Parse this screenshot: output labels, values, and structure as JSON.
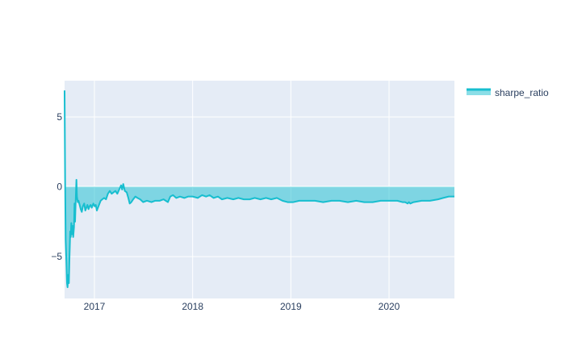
{
  "chart_data": {
    "type": "area",
    "x_type": "date",
    "xlim": [
      "2016-09-12",
      "2020-08-31"
    ],
    "ylim": [
      -8,
      7.6
    ],
    "x_ticks": [
      {
        "label": "2017",
        "date": "2017-01-01"
      },
      {
        "label": "2018",
        "date": "2018-01-01"
      },
      {
        "label": "2019",
        "date": "2019-01-01"
      },
      {
        "label": "2020",
        "date": "2020-01-01"
      }
    ],
    "y_ticks": [
      {
        "label": "5",
        "value": 5
      },
      {
        "label": "0",
        "value": 0
      },
      {
        "label": "−5",
        "value": -5
      }
    ],
    "fill_to": "zero",
    "grid": true,
    "legend_position": "top-right",
    "colors": {
      "line": "#17becf",
      "fill": "rgba(23,190,207,0.5)",
      "plot_bg": "#e5ecf6",
      "grid": "#ffffff",
      "tick_text": "#2a3f5f"
    },
    "series": [
      {
        "name": "sharpe_ratio",
        "points": [
          [
            "2016-09-12",
            6.9
          ],
          [
            "2016-09-14",
            0.5
          ],
          [
            "2016-09-16",
            -3.8
          ],
          [
            "2016-09-19",
            -5.5
          ],
          [
            "2016-09-21",
            -6.9
          ],
          [
            "2016-09-23",
            -7.2
          ],
          [
            "2016-09-26",
            -6.3
          ],
          [
            "2016-09-28",
            -6.9
          ],
          [
            "2016-09-30",
            -5.2
          ],
          [
            "2016-10-03",
            -3.2
          ],
          [
            "2016-10-05",
            -3.6
          ],
          [
            "2016-10-07",
            -2.6
          ],
          [
            "2016-10-10",
            -3.4
          ],
          [
            "2016-10-12",
            -2.8
          ],
          [
            "2016-10-14",
            -3.6
          ],
          [
            "2016-10-17",
            -2.9
          ],
          [
            "2016-10-19",
            -1.2
          ],
          [
            "2016-10-21",
            -2.5
          ],
          [
            "2016-10-24",
            -0.6
          ],
          [
            "2016-10-26",
            0.5
          ],
          [
            "2016-10-28",
            -0.7
          ],
          [
            "2016-10-31",
            -1.1
          ],
          [
            "2016-11-03",
            -1.0
          ],
          [
            "2016-11-07",
            -1.3
          ],
          [
            "2016-11-11",
            -1.6
          ],
          [
            "2016-11-15",
            -1.8
          ],
          [
            "2016-11-19",
            -1.4
          ],
          [
            "2016-11-24",
            -1.2
          ],
          [
            "2016-11-28",
            -1.7
          ],
          [
            "2016-12-02",
            -1.5
          ],
          [
            "2016-12-06",
            -1.3
          ],
          [
            "2016-12-10",
            -1.6
          ],
          [
            "2016-12-14",
            -1.4
          ],
          [
            "2016-12-18",
            -1.3
          ],
          [
            "2016-12-22",
            -1.5
          ],
          [
            "2016-12-28",
            -1.2
          ],
          [
            "2017-01-02",
            -1.4
          ],
          [
            "2017-01-06",
            -1.3
          ],
          [
            "2017-01-10",
            -1.7
          ],
          [
            "2017-01-14",
            -1.5
          ],
          [
            "2017-01-18",
            -1.3
          ],
          [
            "2017-01-24",
            -1.0
          ],
          [
            "2017-01-30",
            -0.9
          ],
          [
            "2017-02-06",
            -0.8
          ],
          [
            "2017-02-13",
            -0.9
          ],
          [
            "2017-02-20",
            -0.5
          ],
          [
            "2017-02-27",
            -0.3
          ],
          [
            "2017-03-06",
            -0.5
          ],
          [
            "2017-03-13",
            -0.4
          ],
          [
            "2017-03-20",
            -0.3
          ],
          [
            "2017-03-27",
            -0.5
          ],
          [
            "2017-04-03",
            -0.2
          ],
          [
            "2017-04-10",
            0.1
          ],
          [
            "2017-04-14",
            -0.2
          ],
          [
            "2017-04-18",
            0.2
          ],
          [
            "2017-04-24",
            -0.3
          ],
          [
            "2017-05-01",
            -0.4
          ],
          [
            "2017-05-07",
            -0.8
          ],
          [
            "2017-05-12",
            -1.2
          ],
          [
            "2017-05-18",
            -1.1
          ],
          [
            "2017-05-25",
            -0.9
          ],
          [
            "2017-06-02",
            -0.7
          ],
          [
            "2017-06-10",
            -0.8
          ],
          [
            "2017-06-20",
            -0.9
          ],
          [
            "2017-07-01",
            -1.1
          ],
          [
            "2017-07-15",
            -1.0
          ],
          [
            "2017-08-01",
            -1.1
          ],
          [
            "2017-08-15",
            -1.0
          ],
          [
            "2017-09-01",
            -1.0
          ],
          [
            "2017-09-15",
            -0.9
          ],
          [
            "2017-10-01",
            -1.1
          ],
          [
            "2017-10-10",
            -0.7
          ],
          [
            "2017-10-20",
            -0.6
          ],
          [
            "2017-11-01",
            -0.8
          ],
          [
            "2017-11-15",
            -0.7
          ],
          [
            "2017-12-01",
            -0.8
          ],
          [
            "2017-12-15",
            -0.7
          ],
          [
            "2018-01-01",
            -0.7
          ],
          [
            "2018-01-20",
            -0.8
          ],
          [
            "2018-02-05",
            -0.6
          ],
          [
            "2018-02-20",
            -0.7
          ],
          [
            "2018-03-05",
            -0.6
          ],
          [
            "2018-03-20",
            -0.8
          ],
          [
            "2018-04-05",
            -0.7
          ],
          [
            "2018-04-20",
            -0.9
          ],
          [
            "2018-05-10",
            -0.8
          ],
          [
            "2018-06-01",
            -0.9
          ],
          [
            "2018-06-20",
            -0.8
          ],
          [
            "2018-07-10",
            -0.9
          ],
          [
            "2018-08-01",
            -0.9
          ],
          [
            "2018-08-20",
            -0.8
          ],
          [
            "2018-09-10",
            -0.9
          ],
          [
            "2018-10-01",
            -0.8
          ],
          [
            "2018-10-20",
            -0.9
          ],
          [
            "2018-11-10",
            -0.8
          ],
          [
            "2018-12-01",
            -1.0
          ],
          [
            "2018-12-20",
            -1.1
          ],
          [
            "2019-01-10",
            -1.1
          ],
          [
            "2019-02-01",
            -1.0
          ],
          [
            "2019-03-01",
            -1.0
          ],
          [
            "2019-04-01",
            -1.0
          ],
          [
            "2019-05-01",
            -1.1
          ],
          [
            "2019-06-01",
            -1.0
          ],
          [
            "2019-07-01",
            -1.0
          ],
          [
            "2019-08-01",
            -1.1
          ],
          [
            "2019-09-01",
            -1.0
          ],
          [
            "2019-10-01",
            -1.1
          ],
          [
            "2019-11-01",
            -1.1
          ],
          [
            "2019-12-01",
            -1.0
          ],
          [
            "2020-01-01",
            -1.0
          ],
          [
            "2020-02-01",
            -1.0
          ],
          [
            "2020-02-20",
            -1.1
          ],
          [
            "2020-03-01",
            -1.1
          ],
          [
            "2020-03-10",
            -1.2
          ],
          [
            "2020-03-15",
            -1.1
          ],
          [
            "2020-03-20",
            -1.2
          ],
          [
            "2020-04-01",
            -1.1
          ],
          [
            "2020-05-01",
            -1.0
          ],
          [
            "2020-06-01",
            -1.0
          ],
          [
            "2020-07-01",
            -0.9
          ],
          [
            "2020-07-20",
            -0.8
          ],
          [
            "2020-08-10",
            -0.7
          ],
          [
            "2020-08-31",
            -0.7
          ]
        ]
      }
    ]
  }
}
